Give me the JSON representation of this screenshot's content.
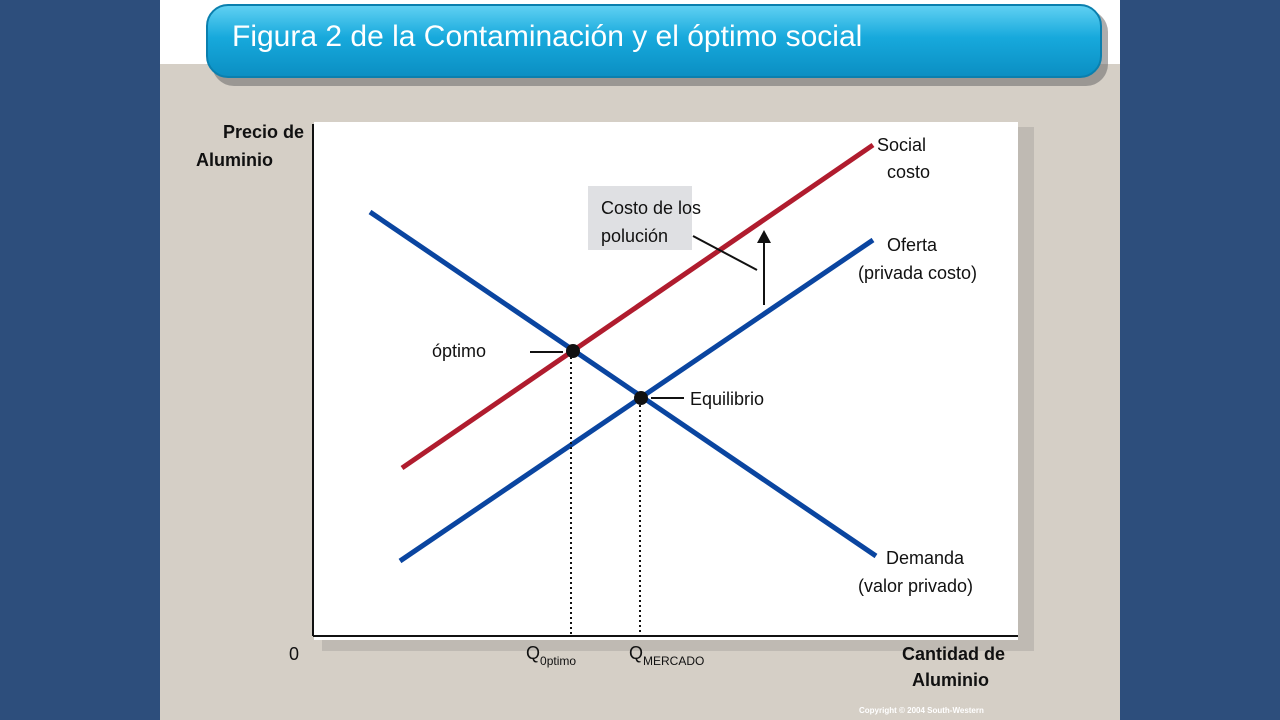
{
  "title": "Figura 2 de la Contaminación y el óptimo social",
  "copyright": "Copyright © 2004 South-Western",
  "colors": {
    "background": "#2d4e7c",
    "title_bar": "#17a9dc",
    "social_cost_line": "#b01c2e",
    "supply_demand_line": "#0a45a0"
  },
  "axes": {
    "y_label_line1": "Precio de",
    "y_label_line2": "Aluminio",
    "x_label_line1": "Cantidad de",
    "x_label_line2": "Aluminio",
    "origin": "0"
  },
  "ticks": {
    "q_optimo_main": "Q",
    "q_optimo_sub": "0ptimo",
    "q_mercado_main": "Q",
    "q_mercado_sub": "MERCADO"
  },
  "curves": {
    "social_cost_line1": "Social",
    "social_cost_line2": "costo",
    "supply_line1": "Oferta",
    "supply_line2": "(privada costo)",
    "demand_line1": "Demanda",
    "demand_line2": "(valor privado)"
  },
  "annotations": {
    "pollution_cost_line1": "Costo de los",
    "pollution_cost_line2": "polución",
    "optimum": "óptimo",
    "equilibrium": "Equilibrio"
  }
}
